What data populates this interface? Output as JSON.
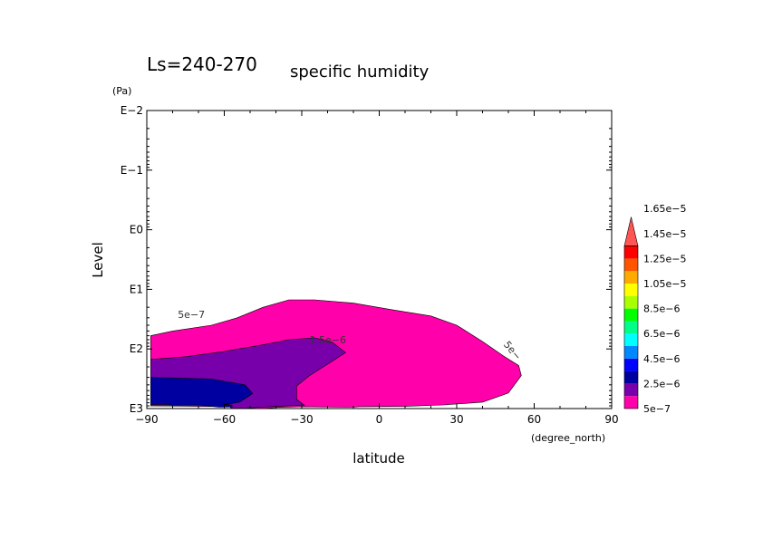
{
  "chart_data": {
    "type": "contour",
    "title": "Ls=240-270",
    "subtitle": "specific humidity",
    "xlabel": "latitude",
    "xunit": "(degree_north)",
    "ylabel": "Level",
    "yunit": "(Pa)",
    "xlim": [
      -90,
      90
    ],
    "x_ticks": [
      -90,
      -60,
      -30,
      0,
      30,
      60,
      90
    ],
    "x_tick_labels": [
      "−90",
      "−60",
      "−30",
      "0",
      "30",
      "60",
      "90"
    ],
    "y_scale": "log",
    "y_ticks": [
      1000,
      100,
      10,
      1,
      0.1,
      0.01
    ],
    "y_tick_labels": [
      "E3",
      "E2",
      "E1",
      "E0",
      "E−1",
      "E−2"
    ],
    "ylim": [
      1000,
      0.01
    ],
    "colorbar": {
      "levels": [
        "5e−7",
        "2.5e−6",
        "4.5e−6",
        "6.5e−6",
        "8.5e−6",
        "1.05e−5",
        "1.25e−5",
        "1.45e−5",
        "1.65e−5"
      ],
      "colors": [
        "#ff00aa",
        "#7700aa",
        "#0000a0",
        "#0000ff",
        "#0088ff",
        "#00ffff",
        "#00ff88",
        "#00ff00",
        "#aaff00",
        "#ffff00",
        "#ffaa00",
        "#ff5500",
        "#ff0000",
        "#ff5555"
      ]
    },
    "regions": [
      {
        "level": "5e−7",
        "color": "#ff00aa",
        "boundary": [
          [
            -88.5,
            60
          ],
          [
            -80,
            50
          ],
          [
            -65,
            40
          ],
          [
            -55,
            30
          ],
          [
            -45,
            20
          ],
          [
            -35,
            15
          ],
          [
            -25,
            15
          ],
          [
            -10,
            17
          ],
          [
            5,
            22
          ],
          [
            20,
            28
          ],
          [
            30,
            40
          ],
          [
            40,
            75
          ],
          [
            48,
            130
          ],
          [
            54,
            190
          ],
          [
            55,
            280
          ],
          [
            50,
            550
          ],
          [
            40,
            780
          ],
          [
            25,
            870
          ],
          [
            10,
            920
          ],
          [
            -8,
            930
          ],
          [
            -10,
            950
          ],
          [
            -30,
            930
          ],
          [
            -40,
            960
          ],
          [
            -45,
            1000
          ],
          [
            -50,
            1000
          ],
          [
            -58,
            940
          ],
          [
            -58,
            900
          ],
          [
            -88.5,
            900
          ]
        ]
      },
      {
        "level": "1.5e−6",
        "color": "#7700aa",
        "boundary": [
          [
            -88.5,
            150
          ],
          [
            -75,
            135
          ],
          [
            -60,
            110
          ],
          [
            -45,
            85
          ],
          [
            -35,
            70
          ],
          [
            -25,
            65
          ],
          [
            -18,
            78
          ],
          [
            -13,
            115
          ],
          [
            -20,
            180
          ],
          [
            -27,
            280
          ],
          [
            -32,
            420
          ],
          [
            -32,
            700
          ],
          [
            -29,
            880
          ],
          [
            -40,
            920
          ],
          [
            -46,
            950
          ],
          [
            -53,
            1000
          ],
          [
            -57,
            1000
          ],
          [
            -58,
            930
          ],
          [
            -88.5,
            900
          ]
        ]
      },
      {
        "level": "2.5e−6",
        "color": "#0000a0",
        "boundary": [
          [
            -88.5,
            300
          ],
          [
            -65,
            320
          ],
          [
            -52,
            400
          ],
          [
            -49,
            560
          ],
          [
            -54,
            780
          ],
          [
            -60,
            860
          ],
          [
            -57,
            870
          ],
          [
            -57,
            940
          ],
          [
            -62,
            950
          ],
          [
            -70,
            870
          ],
          [
            -80,
            880
          ],
          [
            -82,
            850
          ],
          [
            -88.5,
            850
          ]
        ]
      }
    ],
    "contour_labels": [
      {
        "text": "5e−7",
        "x": -78,
        "y": 30
      },
      {
        "text": "1.5e−6",
        "x": -27,
        "y": 80
      },
      {
        "text": "5e−",
        "x": 48,
        "y": 85
      }
    ]
  }
}
